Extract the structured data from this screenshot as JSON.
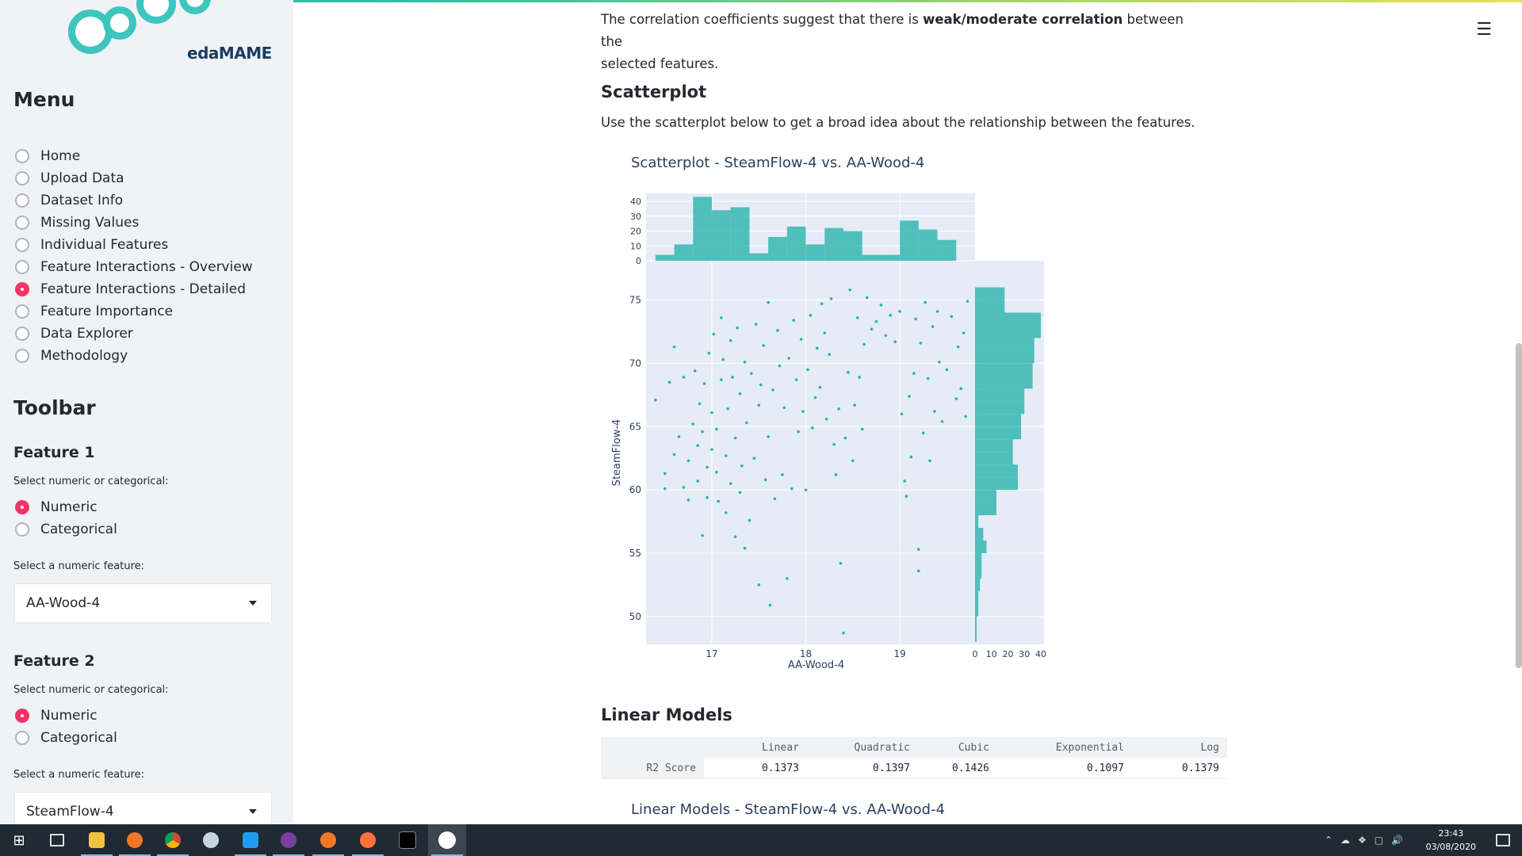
{
  "sidebar": {
    "logo_text": "edaMAME",
    "menu_title": "Menu",
    "menu_items": [
      {
        "label": "Home",
        "selected": false
      },
      {
        "label": "Upload Data",
        "selected": false
      },
      {
        "label": "Dataset Info",
        "selected": false
      },
      {
        "label": "Missing Values",
        "selected": false
      },
      {
        "label": "Individual Features",
        "selected": false
      },
      {
        "label": "Feature Interactions - Overview",
        "selected": false
      },
      {
        "label": "Feature Interactions - Detailed",
        "selected": true
      },
      {
        "label": "Feature Importance",
        "selected": false
      },
      {
        "label": "Data Explorer",
        "selected": false
      },
      {
        "label": "Methodology",
        "selected": false
      }
    ],
    "toolbar_title": "Toolbar",
    "feature1": {
      "title": "Feature 1",
      "type_label": "Select numeric or categorical:",
      "options": [
        "Numeric",
        "Categorical"
      ],
      "selected_option": "Numeric",
      "select_label": "Select a numeric feature:",
      "select_value": "AA-Wood-4"
    },
    "feature2": {
      "title": "Feature 2",
      "type_label": "Select numeric or categorical:",
      "options": [
        "Numeric",
        "Categorical"
      ],
      "selected_option": "Numeric",
      "select_label": "Select a numeric feature:",
      "select_value": "SteamFlow-4"
    }
  },
  "main": {
    "corr_text_pre": "The correlation coefficients suggest that there is ",
    "corr_text_bold": "weak/moderate correlation",
    "corr_text_post": " between the",
    "corr_text_line2": "selected features.",
    "scatter_heading": "Scatterplot",
    "scatter_desc": "Use the scatterplot below to get a broad idea about the relationship between the features.",
    "scatter_title": "Scatterplot - SteamFlow-4  vs. AA-Wood-4",
    "linear_heading": "Linear Models",
    "linear_chart_title": "Linear Models - SteamFlow-4  vs. AA-Wood-4",
    "table": {
      "columns": [
        "",
        "Linear",
        "Quadratic",
        "Cubic",
        "Exponential",
        "Log"
      ],
      "rows": [
        [
          "R2 Score",
          "0.1373",
          "0.1397",
          "0.1426",
          "0.1097",
          "0.1379"
        ]
      ]
    }
  },
  "chart_data": {
    "type": "scatter",
    "title": "Scatterplot - SteamFlow-4  vs. AA-Wood-4",
    "xlabel": "AA-Wood-4",
    "ylabel": "SteamFlow-4",
    "xlim": [
      16.3,
      19.8
    ],
    "ylim": [
      47.8,
      78.1
    ],
    "x_ticks": [
      17,
      18,
      19
    ],
    "y_ticks": [
      50,
      55,
      60,
      65,
      70,
      75
    ],
    "color": "#2ab3ac",
    "marginal_x": {
      "type": "histogram",
      "range": [
        0,
        40
      ],
      "ticks": [
        0,
        10,
        20,
        30,
        40
      ],
      "bins": [
        [
          16.4,
          16.6,
          4
        ],
        [
          16.6,
          16.8,
          11
        ],
        [
          16.8,
          17.0,
          43
        ],
        [
          17.0,
          17.2,
          34
        ],
        [
          17.2,
          17.4,
          36
        ],
        [
          17.4,
          17.6,
          5
        ],
        [
          17.6,
          17.8,
          16
        ],
        [
          17.8,
          18.0,
          23
        ],
        [
          18.0,
          18.2,
          11
        ],
        [
          18.2,
          18.4,
          22
        ],
        [
          18.4,
          18.6,
          20
        ],
        [
          18.6,
          18.8,
          4
        ],
        [
          18.8,
          19.0,
          4
        ],
        [
          19.0,
          19.2,
          27
        ],
        [
          19.2,
          19.4,
          21
        ],
        [
          19.4,
          19.6,
          14
        ]
      ]
    },
    "marginal_y": {
      "type": "histogram",
      "range": [
        0,
        40
      ],
      "ticks": [
        0,
        10,
        20,
        30,
        40
      ],
      "bins": [
        [
          48,
          49,
          1
        ],
        [
          49,
          50,
          1
        ],
        [
          50,
          51,
          2
        ],
        [
          51,
          52,
          2
        ],
        [
          52,
          53,
          3
        ],
        [
          53,
          54,
          4
        ],
        [
          54,
          55,
          4
        ],
        [
          55,
          56,
          7
        ],
        [
          56,
          57,
          5
        ],
        [
          57,
          58,
          2
        ],
        [
          58,
          59,
          13
        ],
        [
          59,
          60,
          13
        ],
        [
          60,
          61,
          26
        ],
        [
          61,
          62,
          26
        ],
        [
          62,
          63,
          23
        ],
        [
          63,
          64,
          23
        ],
        [
          64,
          65,
          28
        ],
        [
          65,
          66,
          28
        ],
        [
          66,
          67,
          30
        ],
        [
          67,
          68,
          30
        ],
        [
          68,
          69,
          35
        ],
        [
          69,
          70,
          35
        ],
        [
          70,
          71,
          36
        ],
        [
          71,
          72,
          36
        ],
        [
          72,
          73,
          40
        ],
        [
          73,
          74,
          40
        ],
        [
          74,
          75,
          18
        ],
        [
          75,
          76,
          18
        ]
      ]
    },
    "points": [
      [
        16.4,
        67.1
      ],
      [
        16.5,
        60.1
      ],
      [
        16.5,
        61.3
      ],
      [
        16.55,
        68.5
      ],
      [
        16.6,
        71.3
      ],
      [
        16.6,
        62.8
      ],
      [
        16.65,
        64.2
      ],
      [
        16.7,
        60.2
      ],
      [
        16.7,
        68.9
      ],
      [
        16.75,
        59.2
      ],
      [
        16.75,
        62.3
      ],
      [
        16.8,
        65.2
      ],
      [
        16.82,
        69.4
      ],
      [
        16.85,
        63.5
      ],
      [
        16.85,
        60.7
      ],
      [
        16.87,
        66.8
      ],
      [
        16.9,
        56.4
      ],
      [
        16.9,
        64.6
      ],
      [
        16.92,
        68.4
      ],
      [
        16.95,
        61.8
      ],
      [
        16.95,
        59.4
      ],
      [
        16.97,
        70.8
      ],
      [
        17.0,
        63.2
      ],
      [
        17.0,
        66.1
      ],
      [
        17.02,
        72.3
      ],
      [
        17.05,
        61.4
      ],
      [
        17.05,
        64.8
      ],
      [
        17.07,
        59.1
      ],
      [
        17.1,
        68.7
      ],
      [
        17.1,
        73.6
      ],
      [
        17.12,
        70.3
      ],
      [
        17.15,
        58.2
      ],
      [
        17.15,
        62.7
      ],
      [
        17.17,
        66.4
      ],
      [
        17.2,
        71.8
      ],
      [
        17.2,
        60.5
      ],
      [
        17.22,
        68.9
      ],
      [
        17.25,
        56.3
      ],
      [
        17.25,
        64.1
      ],
      [
        17.27,
        72.8
      ],
      [
        17.3,
        59.8
      ],
      [
        17.3,
        67.6
      ],
      [
        17.32,
        61.9
      ],
      [
        17.35,
        55.4
      ],
      [
        17.35,
        70.1
      ],
      [
        17.37,
        65.3
      ],
      [
        17.4,
        57.6
      ],
      [
        17.42,
        69.2
      ],
      [
        17.45,
        62.5
      ],
      [
        17.47,
        73.1
      ],
      [
        17.5,
        52.5
      ],
      [
        17.5,
        66.7
      ],
      [
        17.52,
        68.3
      ],
      [
        17.55,
        71.4
      ],
      [
        17.57,
        60.8
      ],
      [
        17.6,
        64.2
      ],
      [
        17.6,
        74.8
      ],
      [
        17.62,
        50.9
      ],
      [
        17.65,
        67.9
      ],
      [
        17.67,
        59.3
      ],
      [
        17.7,
        72.6
      ],
      [
        17.72,
        69.8
      ],
      [
        17.75,
        61.2
      ],
      [
        17.77,
        66.5
      ],
      [
        17.8,
        53.0
      ],
      [
        17.82,
        70.4
      ],
      [
        17.85,
        60.1
      ],
      [
        17.87,
        73.4
      ],
      [
        17.9,
        68.7
      ],
      [
        17.92,
        64.6
      ],
      [
        17.95,
        71.9
      ],
      [
        17.97,
        66.2
      ],
      [
        18.0,
        60.0
      ],
      [
        18.02,
        69.5
      ],
      [
        18.05,
        73.8
      ],
      [
        18.07,
        64.9
      ],
      [
        18.1,
        67.3
      ],
      [
        18.12,
        71.2
      ],
      [
        18.15,
        68.1
      ],
      [
        18.17,
        74.7
      ],
      [
        18.2,
        72.4
      ],
      [
        18.22,
        65.6
      ],
      [
        18.25,
        70.7
      ],
      [
        18.27,
        75.1
      ],
      [
        18.3,
        63.6
      ],
      [
        18.32,
        61.2
      ],
      [
        18.35,
        66.4
      ],
      [
        18.37,
        54.2
      ],
      [
        18.4,
        48.7
      ],
      [
        18.42,
        64.1
      ],
      [
        18.45,
        69.3
      ],
      [
        18.47,
        75.8
      ],
      [
        18.5,
        62.3
      ],
      [
        18.52,
        66.7
      ],
      [
        18.55,
        73.6
      ],
      [
        18.57,
        68.9
      ],
      [
        18.6,
        64.8
      ],
      [
        18.62,
        71.5
      ],
      [
        18.65,
        75.2
      ],
      [
        18.7,
        72.7
      ],
      [
        18.75,
        73.3
      ],
      [
        18.8,
        74.6
      ],
      [
        18.85,
        72.2
      ],
      [
        18.9,
        73.8
      ],
      [
        18.95,
        71.7
      ],
      [
        19.0,
        74.1
      ],
      [
        19.02,
        66.0
      ],
      [
        19.05,
        60.7
      ],
      [
        19.07,
        59.5
      ],
      [
        19.1,
        67.4
      ],
      [
        19.12,
        62.6
      ],
      [
        19.15,
        69.2
      ],
      [
        19.17,
        73.5
      ],
      [
        19.2,
        55.3
      ],
      [
        19.2,
        53.6
      ],
      [
        19.22,
        71.6
      ],
      [
        19.25,
        64.5
      ],
      [
        19.27,
        74.8
      ],
      [
        19.3,
        68.8
      ],
      [
        19.32,
        62.3
      ],
      [
        19.35,
        72.9
      ],
      [
        19.37,
        66.2
      ],
      [
        19.4,
        74.1
      ],
      [
        19.42,
        70.1
      ],
      [
        19.45,
        65.4
      ],
      [
        19.5,
        69.5
      ],
      [
        19.55,
        73.7
      ],
      [
        19.6,
        67.2
      ],
      [
        19.62,
        71.3
      ],
      [
        19.65,
        68.0
      ],
      [
        19.68,
        72.4
      ],
      [
        19.7,
        65.8
      ],
      [
        19.72,
        74.9
      ]
    ]
  }
}
